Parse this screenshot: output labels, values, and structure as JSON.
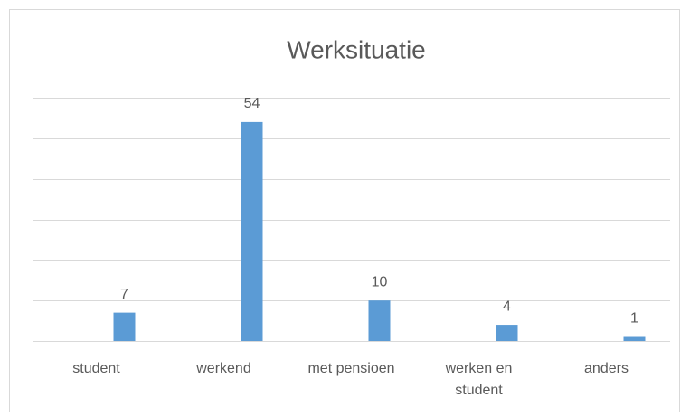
{
  "chart_data": {
    "type": "bar",
    "title": "Werksituatie",
    "categories": [
      "student",
      "werkend",
      "met pensioen",
      "werken en student",
      "anders"
    ],
    "values": [
      7,
      54,
      10,
      4,
      1
    ],
    "color": "#5b9bd5",
    "ylim": [
      0,
      60
    ],
    "yticks": [
      0,
      10,
      20,
      30,
      40,
      50,
      60
    ],
    "grid": true
  }
}
